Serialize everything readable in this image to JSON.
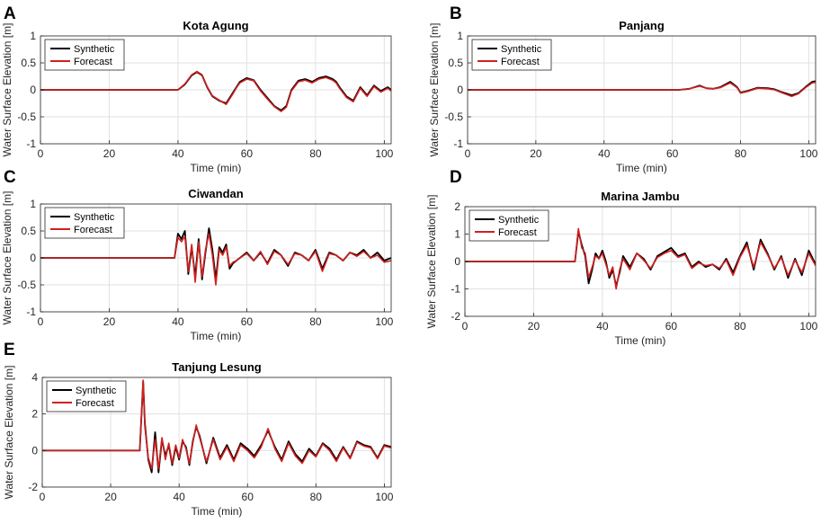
{
  "chart_data": [
    {
      "type": "line",
      "panel": "A",
      "title": "Kota Agung",
      "xlabel": "Time (min)",
      "ylabel": "Water Surface Elevation [m]",
      "xlim": [
        0,
        102
      ],
      "ylim": [
        -1,
        1
      ],
      "xticks": [
        0,
        20,
        40,
        60,
        80,
        100
      ],
      "yticks": [
        -1,
        -0.5,
        0,
        0.5,
        1
      ],
      "xtick_labels": [
        "0",
        "20",
        "40",
        "60",
        "80",
        "100"
      ],
      "ytick_labels": [
        "-1",
        "-0.5",
        "0",
        "0.5",
        "1"
      ],
      "legend": [
        "Synthetic",
        "Forecast"
      ],
      "legend_position": "top-left",
      "grid": true,
      "series": [
        {
          "name": "Synthetic",
          "color": "#000000",
          "x": [
            0,
            40,
            42,
            44,
            45.5,
            47,
            48.5,
            50,
            52,
            54,
            56,
            57,
            58,
            60,
            62,
            64,
            66,
            68,
            70,
            71.5,
            73,
            75,
            77,
            79,
            81,
            83,
            85,
            86,
            87,
            89,
            91,
            93,
            95,
            97,
            99,
            101,
            102
          ],
          "y": [
            0,
            0,
            0.1,
            0.27,
            0.33,
            0.27,
            0.05,
            -0.12,
            -0.2,
            -0.25,
            -0.05,
            0.05,
            0.15,
            0.22,
            0.18,
            0,
            -0.15,
            -0.3,
            -0.38,
            -0.3,
            0,
            0.17,
            0.2,
            0.15,
            0.22,
            0.25,
            0.2,
            0.15,
            0.05,
            -0.12,
            -0.2,
            0.05,
            -0.1,
            0.08,
            -0.02,
            0.05,
            0
          ]
        },
        {
          "name": "Forecast",
          "color": "#d21f1f",
          "x": [
            0,
            40,
            42,
            44,
            45.5,
            47,
            48.5,
            50,
            52,
            54,
            56,
            57,
            58,
            60,
            62,
            64,
            66,
            68,
            70,
            71.5,
            73,
            75,
            77,
            79,
            81,
            83,
            85,
            86,
            87,
            89,
            91,
            93,
            95,
            97,
            99,
            101,
            102
          ],
          "y": [
            0,
            0,
            0.11,
            0.28,
            0.34,
            0.28,
            0.06,
            -0.11,
            -0.19,
            -0.27,
            -0.07,
            0.04,
            0.13,
            0.2,
            0.17,
            -0.02,
            -0.17,
            -0.31,
            -0.4,
            -0.32,
            -0.02,
            0.15,
            0.18,
            0.13,
            0.2,
            0.23,
            0.18,
            0.13,
            0.03,
            -0.14,
            -0.22,
            0.03,
            -0.12,
            0.06,
            -0.04,
            0.03,
            -0.02
          ]
        }
      ]
    },
    {
      "type": "line",
      "panel": "B",
      "title": "Panjang",
      "xlabel": "Time (min)",
      "ylabel": "Water Surface Elevation [m]",
      "xlim": [
        0,
        102
      ],
      "ylim": [
        -1,
        1
      ],
      "xticks": [
        0,
        20,
        40,
        60,
        80,
        100
      ],
      "yticks": [
        -1,
        -0.5,
        0,
        0.5,
        1
      ],
      "xtick_labels": [
        "0",
        "20",
        "40",
        "60",
        "80",
        "100"
      ],
      "ytick_labels": [
        "-1",
        "-0.5",
        "0",
        "0.5",
        "1"
      ],
      "legend": [
        "Synthetic",
        "Forecast"
      ],
      "legend_position": "top-left",
      "grid": true,
      "series": [
        {
          "name": "Synthetic",
          "color": "#000000",
          "x": [
            0,
            62,
            65,
            68,
            70,
            72,
            74,
            77,
            79,
            80,
            82,
            85,
            88,
            90,
            92,
            95,
            97,
            99,
            101,
            102
          ],
          "y": [
            0,
            0,
            0.02,
            0.08,
            0.03,
            0.02,
            0.05,
            0.15,
            0.05,
            -0.05,
            -0.02,
            0.04,
            0.03,
            0.01,
            -0.04,
            -0.1,
            -0.06,
            0.05,
            0.15,
            0.16
          ]
        },
        {
          "name": "Forecast",
          "color": "#d21f1f",
          "x": [
            0,
            62,
            65,
            68,
            70,
            72,
            74,
            77,
            79,
            80,
            82,
            85,
            88,
            90,
            92,
            95,
            97,
            99,
            101,
            102
          ],
          "y": [
            0,
            0,
            0.02,
            0.07,
            0.03,
            0.02,
            0.04,
            0.13,
            0.04,
            -0.06,
            -0.03,
            0.03,
            0.02,
            0,
            -0.05,
            -0.12,
            -0.07,
            0.04,
            0.13,
            0.14
          ]
        }
      ]
    },
    {
      "type": "line",
      "panel": "C",
      "title": "Ciwandan",
      "xlabel": "Time (min)",
      "ylabel": "Water Surface Elevation [m]",
      "xlim": [
        0,
        102
      ],
      "ylim": [
        -1,
        1
      ],
      "xticks": [
        0,
        20,
        40,
        60,
        80,
        100
      ],
      "yticks": [
        -1,
        -0.5,
        0,
        0.5,
        1
      ],
      "xtick_labels": [
        "0",
        "20",
        "40",
        "60",
        "80",
        "100"
      ],
      "ytick_labels": [
        "-1",
        "-0.5",
        "0",
        "0.5",
        "1"
      ],
      "legend": [
        "Synthetic",
        "Forecast"
      ],
      "legend_position": "top-left",
      "grid": true,
      "series": [
        {
          "name": "Synthetic",
          "color": "#000000",
          "x": [
            0,
            39,
            40,
            41,
            42,
            43,
            44,
            45,
            46,
            47,
            48,
            49,
            50,
            51,
            52,
            53,
            54,
            55,
            56,
            57,
            58,
            60,
            62,
            64,
            66,
            68,
            70,
            72,
            74,
            76,
            78,
            80,
            82,
            84,
            86,
            88,
            90,
            92,
            94,
            96,
            98,
            100,
            102
          ],
          "y": [
            0,
            0,
            0.45,
            0.35,
            0.5,
            -0.3,
            0.2,
            -0.35,
            0.35,
            -0.4,
            0.1,
            0.55,
            0.15,
            -0.4,
            0.2,
            0.1,
            0.25,
            -0.2,
            -0.1,
            -0.05,
            0,
            0.1,
            -0.05,
            0.1,
            -0.1,
            0.15,
            0.05,
            -0.15,
            0.1,
            0.05,
            -0.05,
            0.15,
            -0.2,
            0.1,
            0.05,
            -0.05,
            0.1,
            0.05,
            0.15,
            0,
            0.1,
            -0.05,
            0
          ]
        },
        {
          "name": "Forecast",
          "color": "#d21f1f",
          "x": [
            0,
            39,
            40,
            41,
            42,
            43,
            44,
            45,
            46,
            47,
            48,
            49,
            50,
            51,
            52,
            53,
            54,
            55,
            56,
            57,
            58,
            60,
            62,
            64,
            66,
            68,
            70,
            72,
            74,
            76,
            78,
            80,
            82,
            84,
            86,
            88,
            90,
            92,
            94,
            96,
            98,
            100,
            102
          ],
          "y": [
            0,
            0,
            0.38,
            0.3,
            0.4,
            -0.25,
            0.25,
            -0.45,
            0.3,
            -0.35,
            0.15,
            0.45,
            0.05,
            -0.5,
            0.15,
            0.05,
            0.2,
            -0.15,
            -0.08,
            -0.05,
            0,
            0.08,
            -0.05,
            0.12,
            -0.12,
            0.12,
            0.05,
            -0.12,
            0.08,
            0.05,
            -0.05,
            0.12,
            -0.25,
            0.08,
            0.05,
            -0.05,
            0.1,
            0.03,
            0.12,
            0,
            0.05,
            -0.08,
            -0.05
          ]
        }
      ]
    },
    {
      "type": "line",
      "panel": "D",
      "title": "Marina Jambu",
      "xlabel": "Time (min)",
      "ylabel": "Water Surface Elevation [m]",
      "xlim": [
        0,
        102
      ],
      "ylim": [
        -2,
        2
      ],
      "xticks": [
        0,
        20,
        40,
        60,
        80,
        100
      ],
      "yticks": [
        -2,
        -1,
        0,
        1,
        2
      ],
      "xtick_labels": [
        "0",
        "20",
        "40",
        "60",
        "80",
        "100"
      ],
      "ytick_labels": [
        "-2",
        "-1",
        "0",
        "1",
        "2"
      ],
      "legend": [
        "Synthetic",
        "Forecast"
      ],
      "legend_position": "top-left",
      "grid": true,
      "series": [
        {
          "name": "Synthetic",
          "color": "#000000",
          "x": [
            0,
            32,
            33,
            34,
            35,
            36,
            37,
            38,
            39,
            40,
            41,
            42,
            43,
            44,
            45,
            46,
            48,
            50,
            52,
            54,
            56,
            58,
            60,
            62,
            64,
            66,
            68,
            70,
            72,
            74,
            76,
            78,
            80,
            82,
            84,
            86,
            88,
            90,
            92,
            94,
            96,
            98,
            100,
            102
          ],
          "y": [
            0,
            0,
            1.1,
            0.6,
            0.2,
            -0.8,
            -0.3,
            0.3,
            0.1,
            0.4,
            0,
            -0.6,
            -0.3,
            -0.9,
            -0.4,
            0.2,
            -0.2,
            0.3,
            0.1,
            -0.3,
            0.2,
            0.35,
            0.5,
            0.2,
            0.3,
            -0.2,
            0,
            -0.2,
            -0.1,
            -0.3,
            0.1,
            -0.4,
            0.2,
            0.7,
            -0.3,
            0.8,
            0.3,
            -0.3,
            0.2,
            -0.6,
            0.1,
            -0.5,
            0.4,
            -0.1
          ]
        },
        {
          "name": "Forecast",
          "color": "#d21f1f",
          "x": [
            0,
            32,
            33,
            34,
            35,
            36,
            37,
            38,
            39,
            40,
            41,
            42,
            43,
            44,
            45,
            46,
            48,
            50,
            52,
            54,
            56,
            58,
            60,
            62,
            64,
            66,
            68,
            70,
            72,
            74,
            76,
            78,
            80,
            82,
            84,
            86,
            88,
            90,
            92,
            94,
            96,
            98,
            100,
            102
          ],
          "y": [
            0,
            0,
            1.2,
            0.5,
            0.3,
            -0.6,
            -0.2,
            0.2,
            0.1,
            0.3,
            -0.1,
            -0.5,
            -0.2,
            -1,
            -0.3,
            0.1,
            -0.3,
            0.3,
            0.05,
            -0.25,
            0.15,
            0.3,
            0.4,
            0.15,
            0.25,
            -0.25,
            -0.05,
            -0.15,
            -0.1,
            -0.25,
            0.05,
            -0.5,
            0.15,
            0.6,
            -0.2,
            0.7,
            0.25,
            -0.25,
            0.15,
            -0.5,
            0.05,
            -0.4,
            0.3,
            -0.15
          ]
        }
      ]
    },
    {
      "type": "line",
      "panel": "E",
      "title": "Tanjung Lesung",
      "xlabel": "Time (min)",
      "ylabel": "Water Surface Elevation [m]",
      "xlim": [
        0,
        102
      ],
      "ylim": [
        -2,
        4
      ],
      "xticks": [
        0,
        20,
        40,
        60,
        80,
        100
      ],
      "yticks": [
        -2,
        0,
        2,
        4
      ],
      "xtick_labels": [
        "0",
        "20",
        "40",
        "60",
        "80",
        "100"
      ],
      "ytick_labels": [
        "-2",
        "0",
        "2",
        "4"
      ],
      "legend": [
        "Synthetic",
        "Forecast"
      ],
      "legend_position": "top-left",
      "grid": true,
      "series": [
        {
          "name": "Synthetic",
          "color": "#000000",
          "x": [
            0,
            28.5,
            29.5,
            30,
            31,
            32,
            33,
            34,
            35,
            36,
            37,
            38,
            39,
            40,
            41,
            42,
            43,
            44,
            45,
            46,
            48,
            50,
            52,
            54,
            56,
            58,
            60,
            62,
            64,
            66,
            68,
            70,
            72,
            74,
            76,
            78,
            80,
            82,
            84,
            86,
            88,
            90,
            92,
            94,
            96,
            98,
            100,
            102
          ],
          "y": [
            0,
            0,
            3.8,
            1.5,
            -0.5,
            -1.2,
            1,
            -1.2,
            0.6,
            -0.3,
            0.3,
            -0.8,
            0.2,
            -0.5,
            0.5,
            0.2,
            -0.8,
            0.5,
            1.3,
            0.8,
            -0.7,
            0.7,
            -0.4,
            0.3,
            -0.5,
            0.4,
            0.1,
            -0.3,
            0.3,
            1.1,
            0.2,
            -0.5,
            0.5,
            -0.2,
            -0.6,
            0.1,
            -0.3,
            0.4,
            0.1,
            -0.5,
            0.2,
            -0.4,
            0.5,
            0.3,
            0.2,
            -0.4,
            0.3,
            0.2
          ]
        },
        {
          "name": "Forecast",
          "color": "#d21f1f",
          "x": [
            0,
            28.5,
            29.5,
            30,
            31,
            32,
            33,
            34,
            35,
            36,
            37,
            38,
            39,
            40,
            41,
            42,
            43,
            44,
            45,
            46,
            48,
            50,
            52,
            54,
            56,
            58,
            60,
            62,
            64,
            66,
            68,
            70,
            72,
            74,
            76,
            78,
            80,
            82,
            84,
            86,
            88,
            90,
            92,
            94,
            96,
            98,
            100,
            102
          ],
          "y": [
            0,
            0,
            3.85,
            1.3,
            -0.4,
            -1,
            0.6,
            -1,
            0.7,
            -0.5,
            0.4,
            -0.7,
            0.3,
            -0.4,
            0.6,
            0.1,
            -0.7,
            0.4,
            1.4,
            0.7,
            -0.6,
            0.6,
            -0.5,
            0.2,
            -0.6,
            0.3,
            0,
            -0.4,
            0.2,
            1.2,
            0.1,
            -0.6,
            0.4,
            -0.3,
            -0.7,
            0,
            -0.35,
            0.35,
            0,
            -0.6,
            0.15,
            -0.45,
            0.45,
            0.25,
            0.15,
            -0.45,
            0.25,
            0.15
          ]
        }
      ]
    }
  ]
}
